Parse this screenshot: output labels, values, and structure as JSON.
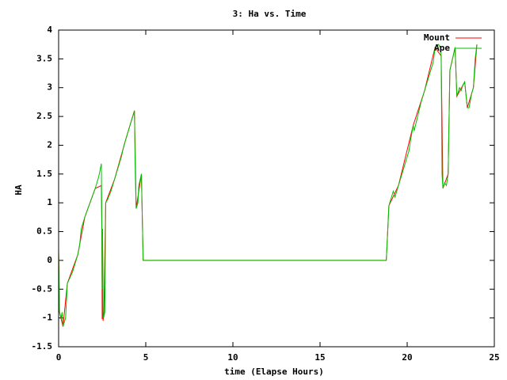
{
  "chart_data": {
    "type": "line",
    "title": "3: Ha vs. Time",
    "x_label": "time (Elapse Hours)",
    "y_label": "HA",
    "xlim": [
      0,
      25
    ],
    "xticks": [
      0,
      5,
      10,
      15,
      20,
      25
    ],
    "ylim": [
      -1.5,
      4
    ],
    "yticks": [
      -1.5,
      -1,
      -0.5,
      0,
      0.5,
      1,
      1.5,
      2,
      2.5,
      3,
      3.5,
      4
    ],
    "legend": "top-right",
    "series": [
      {
        "name": "Mount",
        "color": "#ff0000",
        "x": [
          0,
          0.05,
          0.25,
          0.5,
          1.1,
          1.5,
          2.1,
          2.45,
          2.48,
          2.5,
          2.52,
          2.55,
          2.6,
          2.7,
          3.2,
          3.9,
          4.35,
          4.45,
          4.75,
          4.85,
          18.8,
          18.95,
          19.5,
          20.35,
          21.0,
          21.6,
          21.95,
          22.05,
          22.35,
          22.45,
          22.75,
          22.85,
          23.3,
          23.45,
          23.8,
          24.0
        ],
        "values": [
          0.17,
          -0.9,
          -1.15,
          -0.4,
          0.1,
          0.75,
          1.25,
          1.3,
          0.55,
          -1.02,
          0.5,
          -1.05,
          -0.9,
          1.0,
          1.4,
          2.15,
          2.6,
          0.9,
          1.5,
          0,
          0,
          0.95,
          1.3,
          2.35,
          2.95,
          3.7,
          3.55,
          1.25,
          1.5,
          3.3,
          3.7,
          2.85,
          3.1,
          2.65,
          3.0,
          3.75
        ]
      },
      {
        "name": "Ape",
        "color": "#00c000",
        "x": [
          0,
          0.05,
          0.15,
          0.2,
          0.25,
          0.4,
          0.5,
          0.8,
          1.1,
          1.2,
          1.3,
          1.5,
          1.8,
          2.1,
          2.3,
          2.4,
          2.45,
          2.47,
          2.5,
          2.52,
          2.55,
          2.58,
          2.65,
          2.7,
          2.8,
          3.0,
          3.2,
          3.4,
          3.6,
          3.75,
          3.9,
          4.1,
          4.3,
          4.35,
          4.4,
          4.45,
          4.55,
          4.6,
          4.75,
          4.85,
          18.8,
          18.9,
          18.95,
          19.1,
          19.2,
          19.3,
          19.5,
          19.8,
          20.1,
          20.2,
          20.35,
          20.4,
          20.6,
          20.8,
          21.0,
          21.3,
          21.5,
          21.6,
          21.8,
          21.9,
          21.95,
          22.0,
          22.05,
          22.15,
          22.25,
          22.35,
          22.45,
          22.6,
          22.75,
          22.85,
          23.0,
          23.1,
          23.2,
          23.3,
          23.35,
          23.45,
          23.55,
          23.7,
          23.8,
          23.9,
          24.0
        ],
        "values": [
          0.17,
          -0.9,
          -1.0,
          -0.9,
          -1.15,
          -1.0,
          -0.4,
          -0.2,
          0.1,
          0.25,
          0.55,
          0.75,
          1.0,
          1.25,
          1.45,
          1.6,
          1.68,
          1.0,
          -0.5,
          0.55,
          -0.9,
          -1.0,
          -0.9,
          1.0,
          1.05,
          1.2,
          1.4,
          1.6,
          1.8,
          2.0,
          2.15,
          2.35,
          2.55,
          2.6,
          1.5,
          0.9,
          1.0,
          1.3,
          1.5,
          0,
          0,
          0.6,
          0.95,
          1.1,
          1.2,
          1.1,
          1.3,
          1.6,
          1.9,
          2.1,
          2.35,
          2.25,
          2.5,
          2.75,
          2.95,
          3.25,
          3.45,
          3.7,
          3.75,
          3.7,
          3.55,
          1.5,
          1.25,
          1.35,
          1.3,
          1.5,
          3.3,
          3.5,
          3.7,
          2.85,
          3.0,
          2.95,
          3.05,
          3.1,
          2.95,
          2.65,
          2.65,
          2.9,
          3.0,
          3.5,
          3.75
        ]
      }
    ]
  }
}
